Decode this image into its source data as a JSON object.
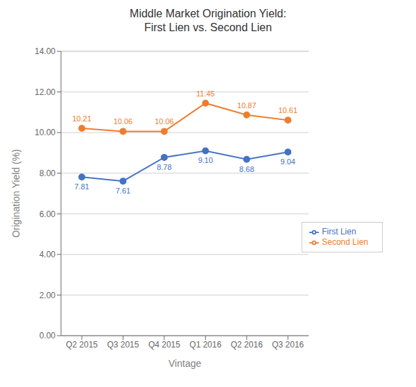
{
  "chart_data": {
    "type": "line",
    "title": "Middle Market Origination Yield:\nFirst Lien vs. Second Lien",
    "xlabel": "Vintage",
    "ylabel": "Origination Yield (%)",
    "categories": [
      "Q2 2015",
      "Q3 2015",
      "Q4 2015",
      "Q1 2016",
      "Q2 2016",
      "Q3 2016"
    ],
    "series": [
      {
        "name": "First Lien",
        "color": "#4472C4",
        "values": [
          7.81,
          7.61,
          8.78,
          9.1,
          8.68,
          9.04
        ],
        "value_labels": [
          "7.81",
          "7.61",
          "8.78",
          "9.10",
          "8.68",
          "9.04"
        ]
      },
      {
        "name": "Second Lien",
        "color": "#ED7D31",
        "values": [
          10.21,
          10.06,
          10.06,
          11.45,
          10.87,
          10.61
        ],
        "value_labels": [
          "10.21",
          "10.06",
          "10.06",
          "11.45",
          "10.87",
          "10.61"
        ]
      }
    ],
    "ylim": [
      0.0,
      14.001
    ],
    "yticks": [
      {
        "value": 0,
        "label": "0.00"
      },
      {
        "value": 2,
        "label": "2.00"
      },
      {
        "value": 4,
        "label": "4.00"
      },
      {
        "value": 6,
        "label": "6.00"
      },
      {
        "value": 8,
        "label": "8.00"
      },
      {
        "value": 10,
        "label": "10.00"
      },
      {
        "value": 12,
        "label": "12.00"
      },
      {
        "value": 14,
        "label": "14.00"
      }
    ],
    "grid": true,
    "legend": "lower right",
    "data_labels": true,
    "marker": "o"
  }
}
